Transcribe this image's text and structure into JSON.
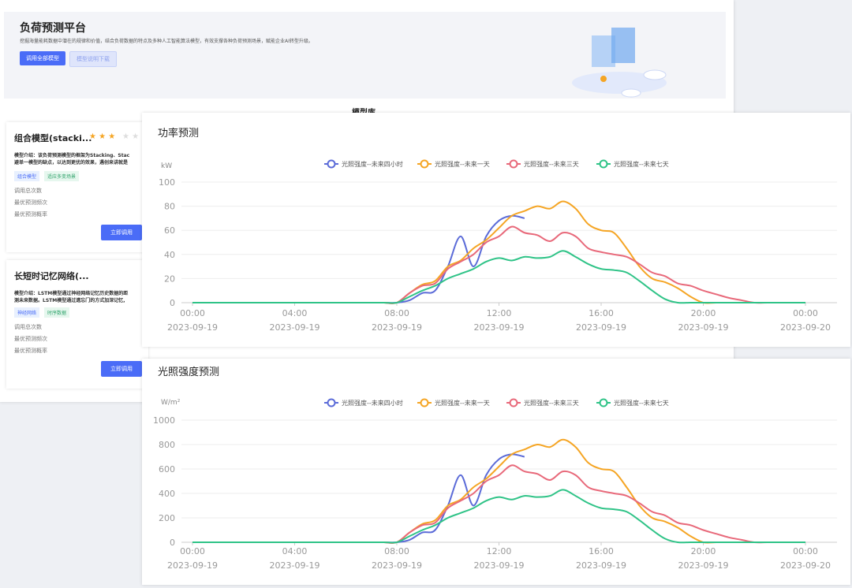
{
  "header": {
    "title": "负荷预测平台",
    "description": "挖掘海量能耗数据中潜在的规律和价值，结合负荷数据的特点及多种人工智能算法模型，有效支撑各种负荷预测场景，赋能企业AI转型升级。",
    "buttons": [
      "调用全部模型",
      "模型说明下载"
    ]
  },
  "section_title": "模型库",
  "cards": [
    {
      "title": "组合模型(stacki...",
      "intro": [
        "模型介绍：该负荷预测模型的框架为Stacking、Stac",
        "避单一模型的缺点，以达到更优的效果，遇创来讲就是"
      ],
      "tags": [
        "组合模型",
        "适应多变场景"
      ],
      "stats": [
        "调用总次数",
        "最优预测频次",
        "最优预测概率"
      ],
      "button": "立即调用"
    },
    {
      "title": "长短时记忆网络(...",
      "intro": [
        "模型介绍：LSTM模型通过神经网络记忆历史数据的距",
        "测未来数据。LSTM模型通过遗忘门的方式加深记忆,"
      ],
      "tags": [
        "神经网络",
        "时序数据"
      ],
      "stats": [
        "调用总次数",
        "最优预测频次",
        "最优预测概率"
      ],
      "button": "立即调用"
    }
  ],
  "chart_data": [
    {
      "type": "line",
      "title": "功率预测",
      "y_label": "kW",
      "x": [
        0,
        0.5,
        1,
        1.5,
        2,
        2.5,
        3,
        3.5,
        4,
        4.5,
        5,
        5.5,
        6,
        6.5,
        7,
        7.5,
        8,
        8.5,
        9,
        9.5,
        10,
        10.5,
        11,
        11.5,
        12,
        12.5,
        13,
        13.5,
        14,
        14.5,
        15,
        15.5,
        16,
        16.5,
        17,
        17.5,
        18,
        18.5,
        19,
        19.5,
        20,
        20.5,
        21,
        21.5,
        22,
        22.5,
        23,
        23.5,
        24
      ],
      "xlim": [
        0,
        24
      ],
      "xticks": [
        {
          "value": 0,
          "label": "00:00"
        },
        {
          "value": 4,
          "label": "04:00"
        },
        {
          "value": 8,
          "label": "08:00"
        },
        {
          "value": 12,
          "label": "12:00"
        },
        {
          "value": 16,
          "label": "16:00"
        },
        {
          "value": 20,
          "label": "20:00"
        },
        {
          "value": 24,
          "label": "00:00"
        }
      ],
      "xtick_dates": [
        "2023-09-19",
        "2023-09-19",
        "2023-09-19",
        "2023-09-19",
        "2023-09-19",
        "2023-09-19",
        "2023-09-20"
      ],
      "ylim": [
        0,
        100
      ],
      "yticks": [
        0,
        20,
        40,
        60,
        80,
        100
      ],
      "grid": true,
      "legend": "top",
      "series": [
        {
          "name": "光照强度--未来四小时",
          "color": "#5b6bd8",
          "values": [
            0,
            0,
            0,
            0,
            0,
            0,
            0,
            0,
            0,
            0,
            0,
            0,
            0,
            0,
            0,
            0,
            0,
            2,
            8,
            10,
            30,
            55,
            30,
            55,
            68,
            72,
            70,
            null,
            null,
            null,
            null,
            null,
            null,
            null,
            null,
            null,
            null,
            null,
            null,
            null,
            null,
            null,
            null,
            null,
            null,
            null,
            null,
            null,
            null
          ]
        },
        {
          "name": "光照强度--未来一天",
          "color": "#f5a524",
          "values": [
            0,
            0,
            0,
            0,
            0,
            0,
            0,
            0,
            0,
            0,
            0,
            0,
            0,
            0,
            0,
            0,
            0,
            8,
            15,
            18,
            30,
            35,
            45,
            52,
            62,
            72,
            76,
            80,
            78,
            84,
            78,
            65,
            60,
            58,
            45,
            30,
            20,
            17,
            12,
            5,
            0,
            0,
            0,
            0,
            0,
            0,
            0,
            0,
            0
          ]
        },
        {
          "name": "光照强度--未来三天",
          "color": "#e8697a",
          "values": [
            0,
            0,
            0,
            0,
            0,
            0,
            0,
            0,
            0,
            0,
            0,
            0,
            0,
            0,
            0,
            0,
            0,
            8,
            14,
            16,
            28,
            34,
            40,
            50,
            55,
            63,
            58,
            56,
            51,
            58,
            55,
            45,
            42,
            40,
            38,
            32,
            25,
            22,
            16,
            14,
            10,
            7,
            4,
            2,
            0,
            0,
            0,
            0,
            0
          ]
        },
        {
          "name": "光照强度--未来七天",
          "color": "#2fc387",
          "values": [
            0,
            0,
            0,
            0,
            0,
            0,
            0,
            0,
            0,
            0,
            0,
            0,
            0,
            0,
            0,
            0,
            0,
            5,
            10,
            14,
            20,
            24,
            28,
            34,
            37,
            35,
            38,
            37,
            38,
            43,
            38,
            32,
            28,
            27,
            25,
            18,
            10,
            3,
            0,
            0,
            0,
            0,
            0,
            0,
            0,
            0,
            0,
            0,
            0
          ]
        }
      ]
    },
    {
      "type": "line",
      "title": "光照强度预测",
      "y_label": "W/m²",
      "x": [
        0,
        0.5,
        1,
        1.5,
        2,
        2.5,
        3,
        3.5,
        4,
        4.5,
        5,
        5.5,
        6,
        6.5,
        7,
        7.5,
        8,
        8.5,
        9,
        9.5,
        10,
        10.5,
        11,
        11.5,
        12,
        12.5,
        13,
        13.5,
        14,
        14.5,
        15,
        15.5,
        16,
        16.5,
        17,
        17.5,
        18,
        18.5,
        19,
        19.5,
        20,
        20.5,
        21,
        21.5,
        22,
        22.5,
        23,
        23.5,
        24
      ],
      "xlim": [
        0,
        24
      ],
      "xticks": [
        {
          "value": 0,
          "label": "00:00"
        },
        {
          "value": 4,
          "label": "04:00"
        },
        {
          "value": 8,
          "label": "08:00"
        },
        {
          "value": 12,
          "label": "12:00"
        },
        {
          "value": 16,
          "label": "16:00"
        },
        {
          "value": 20,
          "label": "20:00"
        },
        {
          "value": 24,
          "label": "00:00"
        }
      ],
      "xtick_dates": [
        "2023-09-19",
        "2023-09-19",
        "2023-09-19",
        "2023-09-19",
        "2023-09-19",
        "2023-09-19",
        "2023-09-20"
      ],
      "ylim": [
        0,
        1000
      ],
      "yticks": [
        0,
        200,
        400,
        600,
        800,
        1000
      ],
      "grid": true,
      "legend": "top",
      "series": [
        {
          "name": "光照强度--未来四小时",
          "color": "#5b6bd8",
          "values": [
            0,
            0,
            0,
            0,
            0,
            0,
            0,
            0,
            0,
            0,
            0,
            0,
            0,
            0,
            0,
            0,
            0,
            20,
            80,
            100,
            300,
            550,
            300,
            550,
            680,
            720,
            700,
            null,
            null,
            null,
            null,
            null,
            null,
            null,
            null,
            null,
            null,
            null,
            null,
            null,
            null,
            null,
            null,
            null,
            null,
            null,
            null,
            null,
            null
          ]
        },
        {
          "name": "光照强度--未来一天",
          "color": "#f5a524",
          "values": [
            0,
            0,
            0,
            0,
            0,
            0,
            0,
            0,
            0,
            0,
            0,
            0,
            0,
            0,
            0,
            0,
            0,
            80,
            150,
            180,
            300,
            350,
            450,
            520,
            620,
            720,
            760,
            800,
            780,
            840,
            780,
            650,
            600,
            580,
            450,
            300,
            200,
            170,
            120,
            50,
            0,
            0,
            0,
            0,
            0,
            0,
            0,
            0,
            0
          ]
        },
        {
          "name": "光照强度--未来三天",
          "color": "#e8697a",
          "values": [
            0,
            0,
            0,
            0,
            0,
            0,
            0,
            0,
            0,
            0,
            0,
            0,
            0,
            0,
            0,
            0,
            0,
            80,
            140,
            160,
            280,
            340,
            400,
            500,
            550,
            630,
            580,
            560,
            510,
            580,
            550,
            450,
            420,
            400,
            380,
            320,
            250,
            220,
            160,
            140,
            100,
            70,
            40,
            20,
            0,
            0,
            0,
            0,
            0
          ]
        },
        {
          "name": "光照强度--未来七天",
          "color": "#2fc387",
          "values": [
            0,
            0,
            0,
            0,
            0,
            0,
            0,
            0,
            0,
            0,
            0,
            0,
            0,
            0,
            0,
            0,
            0,
            50,
            100,
            140,
            200,
            240,
            280,
            340,
            370,
            350,
            380,
            370,
            380,
            430,
            380,
            320,
            280,
            270,
            250,
            180,
            100,
            30,
            0,
            0,
            0,
            0,
            0,
            0,
            0,
            0,
            0,
            0,
            0
          ]
        }
      ]
    }
  ]
}
